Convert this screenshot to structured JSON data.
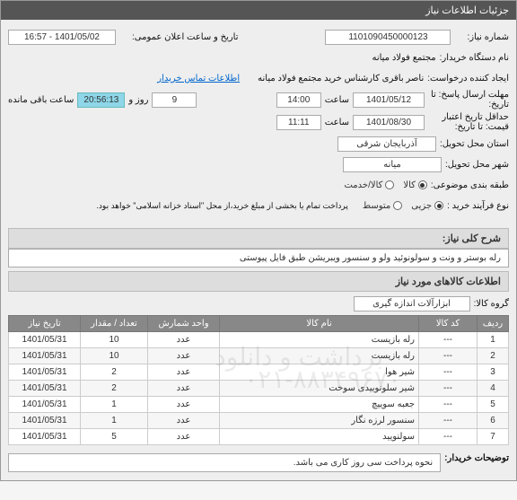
{
  "header": {
    "title": "جزئیات اطلاعات نیاز"
  },
  "fields": {
    "need_number_label": "شماره نیاز:",
    "need_number": "1101090450000123",
    "announce_label": "تاریخ و ساعت اعلان عمومی:",
    "announce_value": "1401/05/02 - 16:57",
    "buyer_label": "نام دستگاه خریدار:",
    "buyer_value": "مجتمع فولاد میانه",
    "creator_label": "ایجاد کننده درخواست:",
    "creator_value": "ناصر باقری کارشناس خرید مجتمع فولاد میانه",
    "contact_link": "اطلاعات تماس خریدار",
    "deadline_label": "مهلت ارسال پاسخ: تا\nتاریخ:",
    "deadline_date": "1401/05/12",
    "time_label": "ساعت",
    "deadline_time": "14:00",
    "days_remaining": "9",
    "days_and_label": "روز و",
    "countdown": "20:56:13",
    "countdown_suffix": "ساعت باقی مانده",
    "validity_label": "حداقل تاریخ اعتبار\nقیمت: تا تاریخ:",
    "validity_date": "1401/08/30",
    "validity_time": "11:11",
    "province_label": "استان محل تحویل:",
    "province_value": "آذربایجان شرقی",
    "city_label": "شهر محل تحویل:",
    "city_value": "میانه",
    "category_label": "طبقه بندی موضوعی:",
    "cat_option1": "کالا",
    "cat_option2": "کالا/خدمت",
    "process_label": "نوع فرآیند خرید :",
    "proc_option1": "جزیی",
    "proc_option2": "متوسط",
    "process_note": "پرداخت تمام یا بخشی از مبلغ خرید،از محل \"اسناد خزانه اسلامی\" خواهد بود."
  },
  "description": {
    "title": "شرح کلی نیاز:",
    "text": "رله بوستر و ونت و سولونوئید ولو و سنسور ویبریشن طبق فایل پیوستی"
  },
  "goods": {
    "title": "اطلاعات کالاهای مورد نیاز",
    "group_label": "گروه کالا:",
    "group_value": "ابزارآلات اندازه گیری",
    "columns": [
      "ردیف",
      "کد کالا",
      "نام کالا",
      "واحد شمارش",
      "تعداد / مقدار",
      "تاریخ نیاز"
    ],
    "rows": [
      [
        "1",
        "---",
        "رله بازیست",
        "عدد",
        "10",
        "1401/05/31"
      ],
      [
        "2",
        "---",
        "رله بازیست",
        "عدد",
        "10",
        "1401/05/31"
      ],
      [
        "3",
        "---",
        "شیر هوا",
        "عدد",
        "2",
        "1401/05/31"
      ],
      [
        "4",
        "---",
        "شیر سلونوییدی سوخت",
        "عدد",
        "2",
        "1401/05/31"
      ],
      [
        "5",
        "---",
        "جعبه سوییچ",
        "عدد",
        "1",
        "1401/05/31"
      ],
      [
        "6",
        "---",
        "سنسور لرزه نگار",
        "عدد",
        "1",
        "1401/05/31"
      ],
      [
        "7",
        "---",
        "سولنویید",
        "عدد",
        "5",
        "1401/05/31"
      ]
    ],
    "watermark1": "۰۲۱-۸۸۳۴۹۶۷۰",
    "watermark2": "برداشت و دانلود"
  },
  "buyer_notes": {
    "label": "توضیحات خریدار:",
    "text": "نحوه پرداخت سی روز کاری می باشد."
  },
  "colors": {
    "header_bg": "#555555",
    "countdown_bg": "#8ed6e8",
    "th_bg": "#888888"
  }
}
